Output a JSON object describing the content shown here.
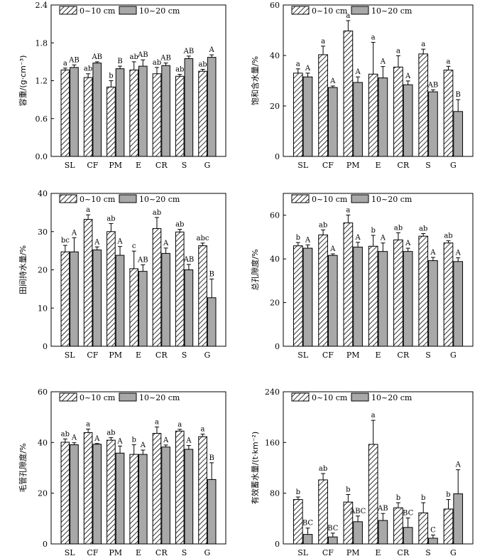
{
  "colors": {
    "filled": "#a8a8a8",
    "outline": "#000000",
    "background": "#ffffff"
  },
  "legend": {
    "series_1": "0~10 cm",
    "series_2": "10~20 cm"
  },
  "chart_data": [
    {
      "type": "bar",
      "ylabel": "容重/(g·cm⁻³)",
      "categories": [
        "SL",
        "CF",
        "PM",
        "E",
        "CR",
        "S",
        "G"
      ],
      "ylim": [
        0,
        2.4
      ],
      "yticks": [
        0,
        0.6,
        1.2,
        1.8,
        2.4
      ],
      "series": [
        {
          "name": "0~10 cm",
          "values": [
            1.37,
            1.25,
            1.1,
            1.37,
            1.31,
            1.27,
            1.35
          ],
          "errors": [
            0.03,
            0.06,
            0.1,
            0.13,
            0.1,
            0.03,
            0.03
          ],
          "labels": [
            "a",
            "ab",
            "b",
            "ab",
            "ab",
            "ab",
            "ab"
          ]
        },
        {
          "name": "10~20 cm",
          "values": [
            1.41,
            1.48,
            1.39,
            1.43,
            1.44,
            1.55,
            1.57
          ],
          "errors": [
            0.04,
            0.02,
            0.04,
            0.1,
            0.04,
            0.04,
            0.04
          ],
          "labels": [
            "AB",
            "AB",
            "B",
            "AB",
            "AB",
            "AB",
            "A"
          ]
        }
      ]
    },
    {
      "type": "bar",
      "ylabel": "饱和含水量/%",
      "categories": [
        "SL",
        "CF",
        "PM",
        "E",
        "CR",
        "S",
        "G"
      ],
      "ylim": [
        0,
        60
      ],
      "yticks": [
        0,
        20,
        40,
        60
      ],
      "series": [
        {
          "name": "0~10 cm",
          "values": [
            33.0,
            40.3,
            49.7,
            32.6,
            35.4,
            40.6,
            34.2
          ],
          "errors": [
            1.7,
            3.4,
            4.1,
            12.6,
            4.5,
            1.9,
            1.5
          ],
          "labels": [
            "a",
            "a",
            "a",
            "a",
            "a",
            "a",
            "a"
          ]
        },
        {
          "name": "10~20 cm",
          "values": [
            31.5,
            27.3,
            29.3,
            31.1,
            28.4,
            25.6,
            17.8
          ],
          "errors": [
            1.5,
            0.6,
            2.2,
            4.5,
            1.5,
            0.8,
            4.7
          ],
          "labels": [
            "A",
            "A",
            "A",
            "A",
            "A",
            "AB",
            "B"
          ]
        }
      ]
    },
    {
      "type": "bar",
      "ylabel": "田间持水量/%",
      "categories": [
        "SL",
        "CF",
        "PM",
        "E",
        "CR",
        "S",
        "G"
      ],
      "ylim": [
        0,
        40
      ],
      "yticks": [
        0,
        10,
        20,
        30,
        40
      ],
      "series": [
        {
          "name": "0~10 cm",
          "values": [
            24.7,
            33.2,
            30.0,
            20.3,
            30.8,
            29.9,
            26.3
          ],
          "errors": [
            1.7,
            1.2,
            2.1,
            4.6,
            2.9,
            0.7,
            0.7
          ],
          "labels": [
            "bc",
            "a",
            "ab",
            "c",
            "ab",
            "ab",
            "abc"
          ]
        },
        {
          "name": "10~20 cm",
          "values": [
            24.7,
            25.2,
            23.8,
            19.6,
            24.3,
            20.0,
            12.7
          ],
          "errors": [
            3.7,
            0.8,
            2.3,
            1.7,
            1.4,
            1.4,
            4.9
          ],
          "labels": [
            "A",
            "A",
            "A",
            "AB",
            "A",
            "AB",
            "B"
          ]
        }
      ]
    },
    {
      "type": "bar",
      "ylabel": "总孔隙度/%",
      "categories": [
        "SL",
        "CF",
        "PM",
        "E",
        "CR",
        "S",
        "G"
      ],
      "ylim": [
        0,
        70
      ],
      "yticks": [
        0,
        20,
        40,
        60
      ],
      "series": [
        {
          "name": "0~10 cm",
          "values": [
            46.0,
            51.0,
            56.5,
            45.8,
            48.7,
            50.4,
            47.3
          ],
          "errors": [
            1.5,
            2.3,
            3.6,
            5.0,
            3.3,
            1.2,
            1.0
          ],
          "labels": [
            "b",
            "ab",
            "a",
            "b",
            "ab",
            "ab",
            "ab"
          ]
        },
        {
          "name": "10~20 cm",
          "values": [
            44.9,
            41.6,
            45.4,
            43.4,
            43.4,
            39.2,
            38.8
          ],
          "errors": [
            1.5,
            0.7,
            2.2,
            3.9,
            1.5,
            1.5,
            1.7
          ],
          "labels": [
            "A",
            "A",
            "A",
            "A",
            "A",
            "A",
            "A"
          ]
        }
      ]
    },
    {
      "type": "bar",
      "ylabel": "毛管孔隙度/%",
      "categories": [
        "SL",
        "CF",
        "PM",
        "E",
        "CR",
        "S",
        "G"
      ],
      "ylim": [
        0,
        60
      ],
      "yticks": [
        0,
        20,
        40,
        60
      ],
      "series": [
        {
          "name": "0~10 cm",
          "values": [
            40.1,
            43.9,
            40.9,
            35.3,
            43.6,
            44.5,
            42.3
          ],
          "errors": [
            1.3,
            1.4,
            1.0,
            3.8,
            2.5,
            0.7,
            1.0
          ],
          "labels": [
            "ab",
            "a",
            "ab",
            "b",
            "a",
            "a",
            "a"
          ]
        },
        {
          "name": "10~20 cm",
          "values": [
            39.1,
            39.3,
            35.8,
            35.3,
            38.2,
            37.3,
            25.4
          ],
          "errors": [
            0.8,
            0.3,
            2.8,
            1.7,
            0.8,
            1.5,
            6.6
          ],
          "labels": [
            "A",
            "A",
            "A",
            "A",
            "A",
            "A",
            "B"
          ]
        }
      ]
    },
    {
      "type": "bar",
      "ylabel": "有效蓄水量/(t·km⁻²)",
      "categories": [
        "SL",
        "CF",
        "PM",
        "E",
        "CR",
        "S",
        "G"
      ],
      "ylim": [
        0,
        240
      ],
      "yticks": [
        0,
        80,
        160,
        240
      ],
      "series": [
        {
          "name": "0~10 cm",
          "values": [
            70,
            101,
            66,
            157,
            57,
            49,
            55
          ],
          "errors": [
            4,
            10,
            12,
            38,
            8,
            16,
            15
          ],
          "labels": [
            "b",
            "ab",
            "b",
            "a",
            "b",
            "b",
            "b"
          ]
        },
        {
          "name": "10~20 cm",
          "values": [
            15,
            11,
            35,
            37,
            26,
            9,
            79
          ],
          "errors": [
            10,
            6,
            9,
            11,
            15,
            5,
            38
          ],
          "labels": [
            "BC",
            "BC",
            "ABC",
            "AB",
            "BC",
            "C",
            "A"
          ]
        }
      ]
    }
  ]
}
